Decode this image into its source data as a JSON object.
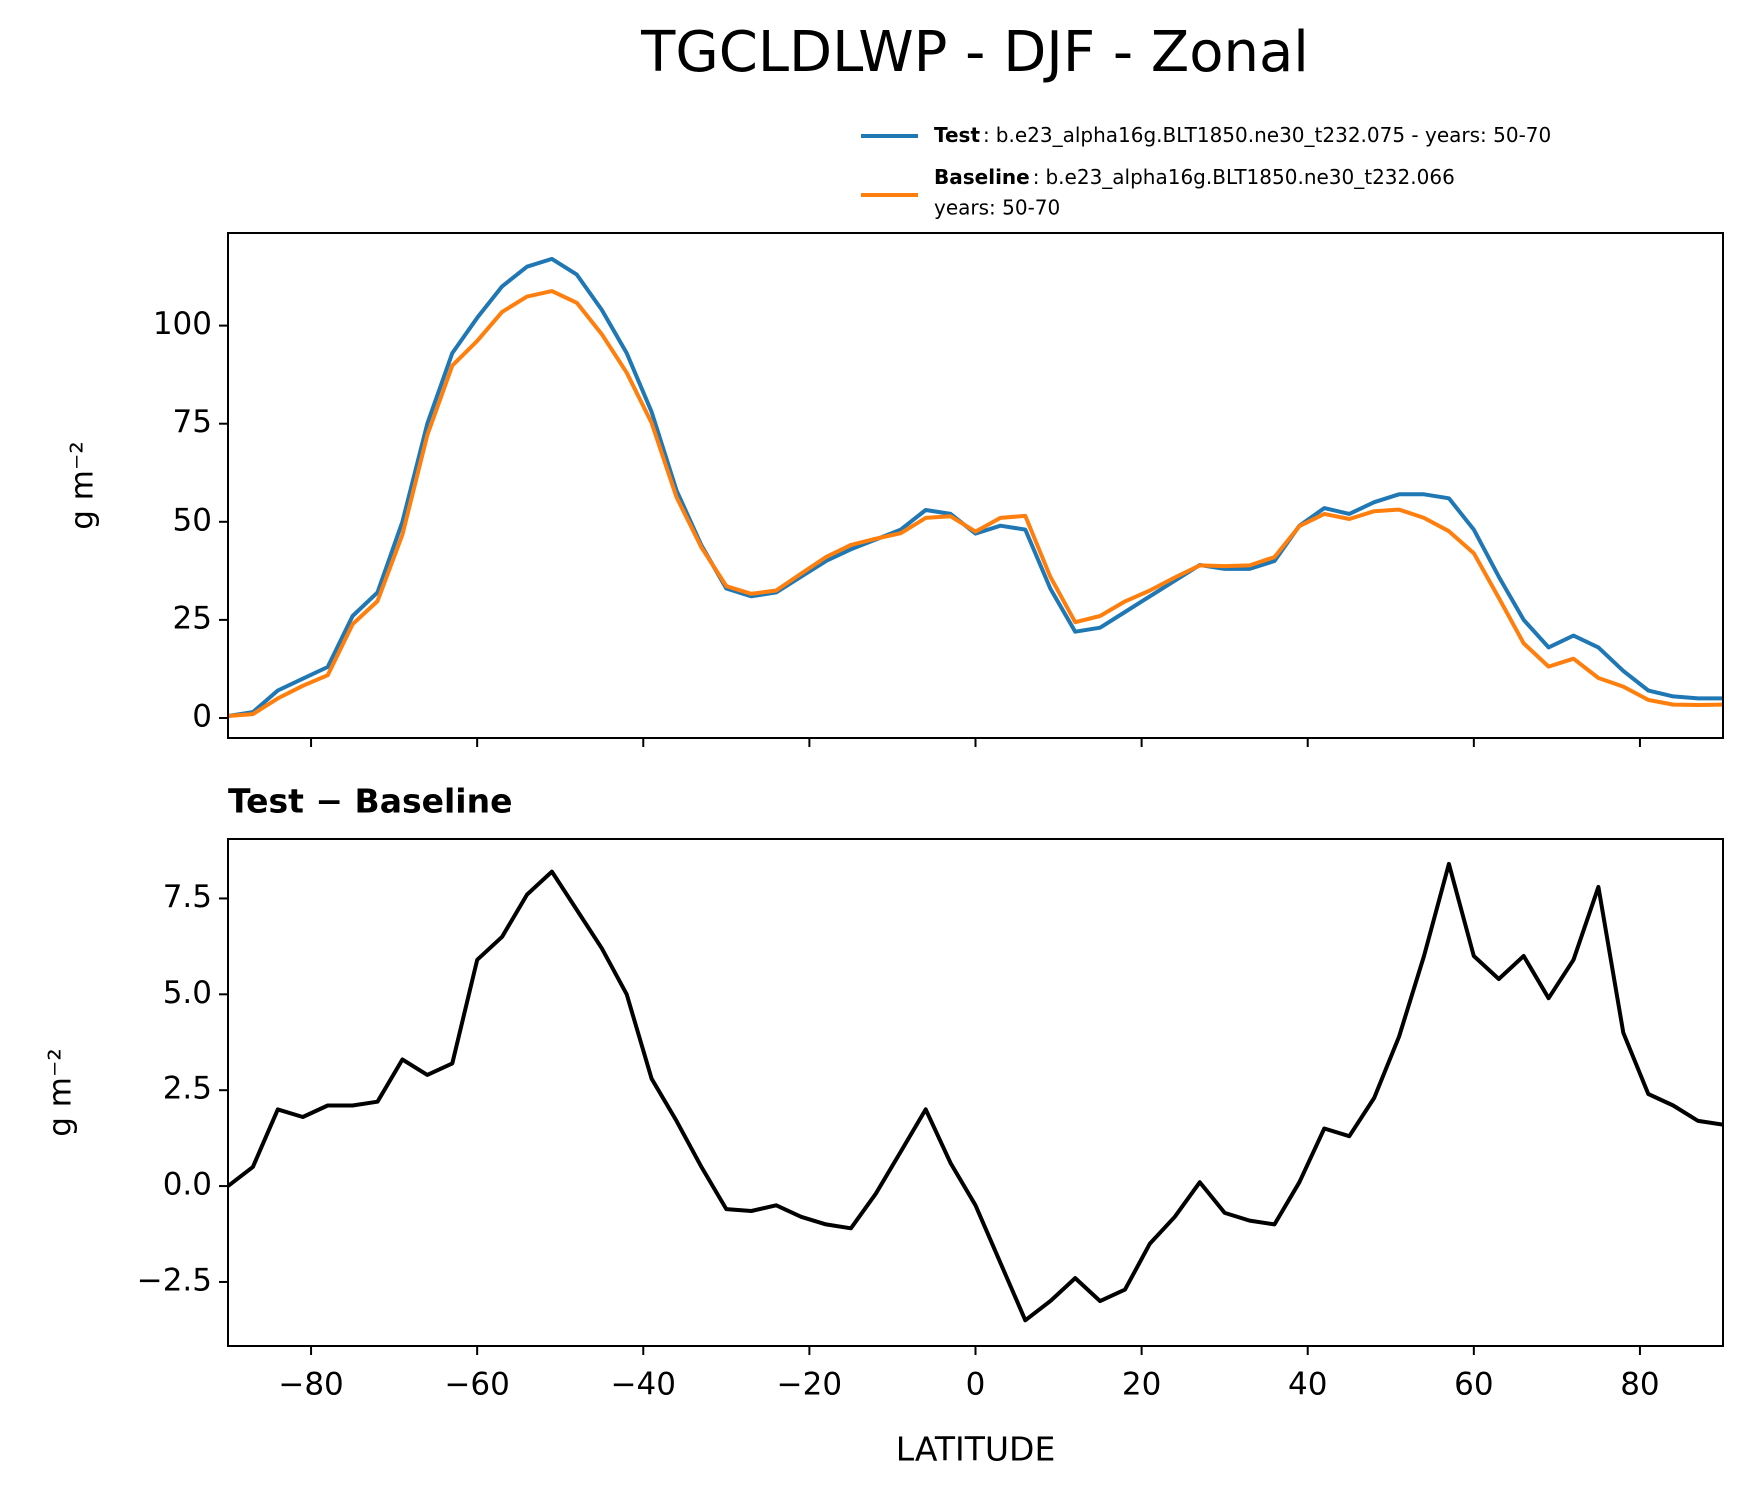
{
  "title": "TGCLDLWP - DJF - Zonal",
  "chart_data": [
    {
      "type": "line",
      "ylabel": "g m⁻²",
      "x": [
        -90,
        -87,
        -84,
        -81,
        -78,
        -75,
        -72,
        -69,
        -66,
        -63,
        -60,
        -57,
        -54,
        -51,
        -48,
        -45,
        -42,
        -39,
        -36,
        -33,
        -30,
        -27,
        -24,
        -21,
        -18,
        -15,
        -12,
        -9,
        -6,
        -3,
        0,
        3,
        6,
        9,
        12,
        15,
        18,
        21,
        24,
        27,
        30,
        33,
        36,
        39,
        42,
        45,
        48,
        51,
        54,
        57,
        60,
        63,
        66,
        69,
        72,
        75,
        78,
        81,
        84,
        87,
        90
      ],
      "series": [
        {
          "name": "Test",
          "label": "b.e23_alpha16g.BLT1850.ne30_t232.075 - years: 50-70",
          "color": "#1f77b4",
          "values": [
            0.5,
            1.5,
            7,
            10,
            13,
            26,
            32,
            50,
            75,
            93,
            102,
            110,
            115,
            117,
            113,
            104,
            93,
            78,
            58,
            44,
            33,
            31,
            32,
            36,
            40,
            43,
            45.5,
            48,
            53,
            52,
            47,
            49,
            48,
            33,
            22,
            23,
            27,
            31,
            35,
            39,
            38,
            38,
            40,
            49,
            53.5,
            52,
            55,
            57,
            57,
            56,
            48,
            36,
            25,
            18,
            21,
            18,
            12,
            7,
            5.5,
            5,
            5
          ]
        },
        {
          "name": "Baseline",
          "label_lines": [
            "b.e23_alpha16g.BLT1850.ne30_t232.066",
            "years: 50-70"
          ],
          "color": "#ff7f0e",
          "values": [
            0.5,
            1,
            5,
            8.2,
            10.9,
            23.9,
            29.8,
            46.7,
            72.1,
            89.8,
            96.1,
            103.5,
            107.4,
            108.8,
            105.8,
            97.8,
            88,
            75.2,
            56.3,
            43.5,
            33.6,
            31.65,
            32.5,
            36.8,
            41,
            44.1,
            45.7,
            47.1,
            51,
            51.4,
            47.5,
            51,
            51.5,
            36,
            24.4,
            26,
            29.7,
            32.5,
            35.8,
            38.9,
            38.7,
            38.9,
            41,
            48.9,
            52,
            50.7,
            52.7,
            53.1,
            51,
            47.6,
            42,
            30.6,
            19,
            13.1,
            15.1,
            10.2,
            8,
            4.6,
            3.4,
            3.3,
            3.4
          ]
        }
      ],
      "xlim": [
        -90,
        90
      ],
      "xticks": [
        -80,
        -60,
        -40,
        -20,
        0,
        20,
        40,
        60,
        80
      ],
      "ylim": [
        -5.1,
        123.6
      ],
      "yticks": [
        0,
        25,
        50,
        75,
        100
      ]
    },
    {
      "type": "line",
      "title": "Test − Baseline",
      "xlabel": "LATITUDE",
      "ylabel": "g m⁻²",
      "x": [
        -90,
        -87,
        -84,
        -81,
        -78,
        -75,
        -72,
        -69,
        -66,
        -63,
        -60,
        -57,
        -54,
        -51,
        -48,
        -45,
        -42,
        -39,
        -36,
        -33,
        -30,
        -27,
        -24,
        -21,
        -18,
        -15,
        -12,
        -9,
        -6,
        -3,
        0,
        3,
        6,
        9,
        12,
        15,
        18,
        21,
        24,
        27,
        30,
        33,
        36,
        39,
        42,
        45,
        48,
        51,
        54,
        57,
        60,
        63,
        66,
        69,
        72,
        75,
        78,
        81,
        84,
        87,
        90
      ],
      "series": [
        {
          "color": "#000000",
          "values": [
            0,
            0.5,
            2.0,
            1.8,
            2.1,
            2.1,
            2.2,
            3.3,
            2.9,
            3.2,
            5.9,
            6.5,
            7.6,
            8.2,
            7.2,
            6.2,
            5.0,
            2.8,
            1.7,
            0.5,
            -0.6,
            -0.65,
            -0.5,
            -0.8,
            -1.0,
            -1.1,
            -0.2,
            0.9,
            2.0,
            0.6,
            -0.5,
            -2.0,
            -3.5,
            -3.0,
            -2.4,
            -3.0,
            -2.7,
            -1.5,
            -0.8,
            0.1,
            -0.7,
            -0.9,
            -1.0,
            0.1,
            1.5,
            1.3,
            2.3,
            3.9,
            6.0,
            8.4,
            6.0,
            5.4,
            6.0,
            4.9,
            5.9,
            7.8,
            4.0,
            2.4,
            2.1,
            1.7,
            1.6
          ]
        }
      ],
      "xlim": [
        -90,
        90
      ],
      "xticks": [
        {
          "value": -80,
          "label": "−80"
        },
        {
          "value": -60,
          "label": "−60"
        },
        {
          "value": -40,
          "label": "−40"
        },
        {
          "value": -20,
          "label": "−20"
        },
        0,
        20,
        40,
        60,
        80
      ],
      "ylim": [
        -4.17,
        9.05
      ],
      "yticks": [
        {
          "value": -2.5,
          "label": "−2.5"
        },
        {
          "value": 0,
          "label": "0.0"
        },
        {
          "value": 2.5,
          "label": "2.5"
        },
        {
          "value": 5,
          "label": "5.0"
        },
        {
          "value": 7.5,
          "label": "7.5"
        }
      ]
    }
  ]
}
